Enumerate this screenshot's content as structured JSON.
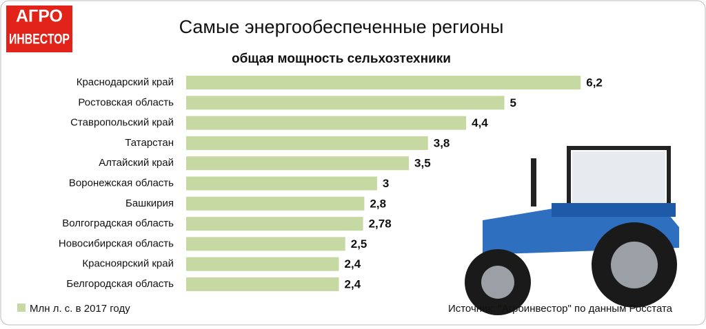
{
  "logo": {
    "line1": "АГРО",
    "line2": "ИНВЕСТОР"
  },
  "chart_data": {
    "type": "bar",
    "orientation": "horizontal",
    "title": "Самые энергообеспеченные регионы",
    "subtitle": "общая мощность сельхозтехники",
    "categories": [
      "Краснодарский край",
      "Ростовская область",
      "Ставропольский край",
      "Татарстан",
      "Алтайский край",
      "Воронежская область",
      "Башкирия",
      "Волгоградская область",
      "Новосибирская область",
      "Красноярский край",
      "Белгородская область"
    ],
    "values": [
      6.2,
      5,
      4.4,
      3.8,
      3.5,
      3,
      2.8,
      2.78,
      2.5,
      2.4,
      2.4
    ],
    "value_labels": [
      "6,2",
      "5",
      "4,4",
      "3,8",
      "3,5",
      "3",
      "2,8",
      "2,78",
      "2,5",
      "2,4",
      "2,4"
    ],
    "color": "#c6d9a3",
    "legend": "Млн л. с. в 2017 году",
    "source": "Источник: \"Агроинвестор\" по данным Росстата"
  }
}
